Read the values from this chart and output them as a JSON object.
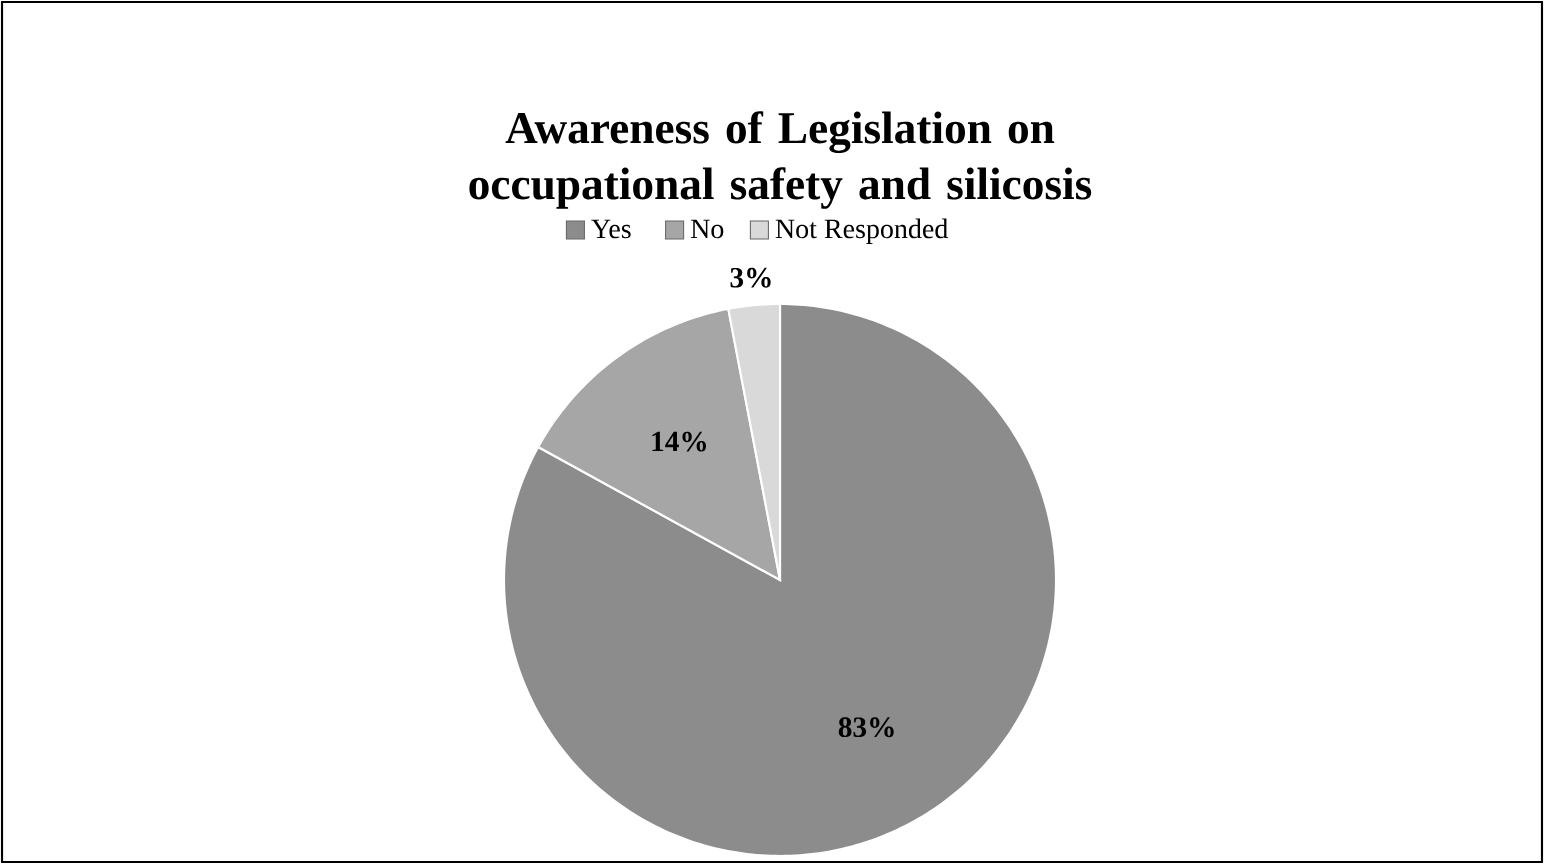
{
  "chart_data": {
    "type": "pie",
    "title": "Awareness of Legislation on occupational safety and silicosis",
    "categories": [
      "Yes",
      "No",
      "Not Responded"
    ],
    "values": [
      83,
      14,
      3
    ],
    "colors": [
      "#8c8c8c",
      "#a6a6a6",
      "#d9d9d9"
    ],
    "value_labels": [
      "83%",
      "14%",
      "3%"
    ],
    "legend": "top"
  }
}
